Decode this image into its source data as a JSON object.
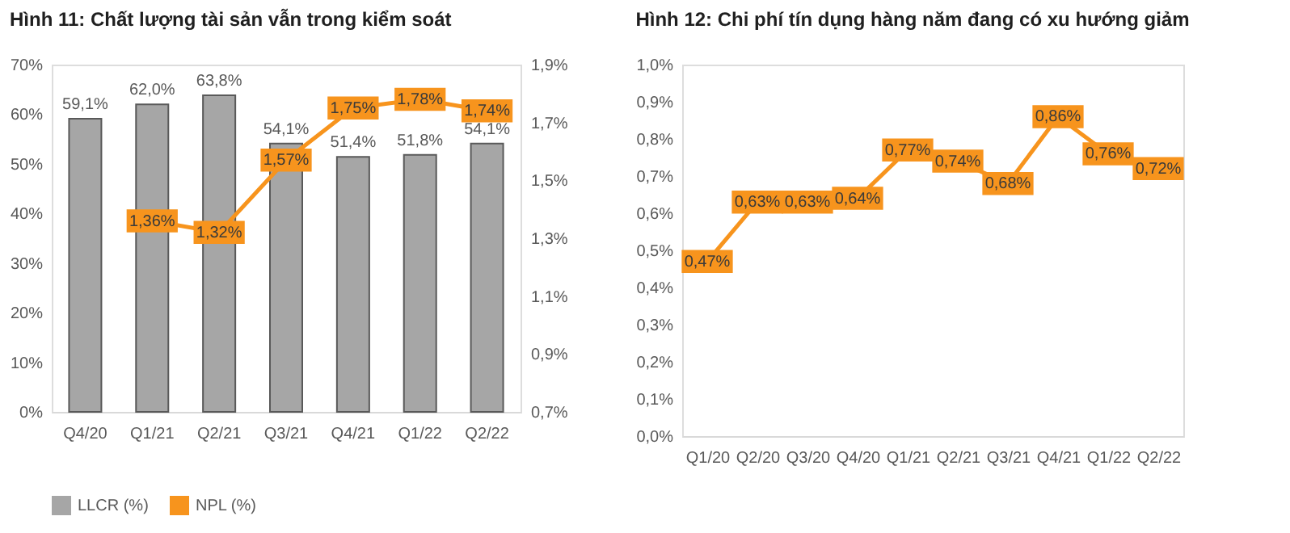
{
  "chart_data": [
    {
      "type": "bar",
      "title": "Hình 11: Chất lượng tài sản vẫn trong kiểm soát",
      "categories": [
        "Q4/20",
        "Q1/21",
        "Q2/21",
        "Q3/21",
        "Q4/21",
        "Q1/22",
        "Q2/22"
      ],
      "series": [
        {
          "name": "LLCR (%)",
          "type": "bar",
          "color": "#a6a6a6",
          "values": [
            59.1,
            62.0,
            63.8,
            54.1,
            51.4,
            51.8,
            54.1
          ],
          "value_labels": [
            "59,1%",
            "62,0%",
            "63,8%",
            "54,1%",
            "51,4%",
            "51,8%",
            "54,1%"
          ]
        },
        {
          "name": "NPL (%)",
          "type": "line",
          "axis": "y2",
          "marker": "square",
          "color": "#f7941d",
          "values": [
            null,
            1.36,
            1.32,
            1.57,
            1.75,
            1.78,
            1.74
          ],
          "value_labels": [
            null,
            "1,36%",
            "1,32%",
            "1,57%",
            "1,75%",
            "1,78%",
            "1,74%"
          ]
        }
      ],
      "ylim": [
        0,
        70
      ],
      "yticks": [
        {
          "value": 0,
          "label": "0%"
        },
        {
          "value": 10,
          "label": "10%"
        },
        {
          "value": 20,
          "label": "20%"
        },
        {
          "value": 30,
          "label": "30%"
        },
        {
          "value": 40,
          "label": "40%"
        },
        {
          "value": 50,
          "label": "50%"
        },
        {
          "value": 60,
          "label": "60%"
        },
        {
          "value": 70,
          "label": "70%"
        }
      ],
      "y2lim": [
        0.7,
        1.9
      ],
      "y2ticks": [
        {
          "value": 0.7,
          "label": "0,7%"
        },
        {
          "value": 0.9,
          "label": "0,9%"
        },
        {
          "value": 1.1,
          "label": "1,1%"
        },
        {
          "value": 1.3,
          "label": "1,3%"
        },
        {
          "value": 1.5,
          "label": "1,5%"
        },
        {
          "value": 1.7,
          "label": "1,7%"
        },
        {
          "value": 1.9,
          "label": "1,9%"
        }
      ],
      "legend": "bottom",
      "grid": false
    },
    {
      "type": "line",
      "title": "Hình 12: Chi phí tín dụng hàng năm đang có xu hướng giảm",
      "categories": [
        "Q1/20",
        "Q2/20",
        "Q3/20",
        "Q4/20",
        "Q1/21",
        "Q2/21",
        "Q3/21",
        "Q4/21",
        "Q1/22",
        "Q2/22"
      ],
      "series": [
        {
          "marker": "square",
          "color": "#f7941d",
          "values": [
            0.47,
            0.63,
            0.63,
            0.64,
            0.77,
            0.74,
            0.68,
            0.86,
            0.76,
            0.72
          ],
          "value_labels": [
            "0,47%",
            "0,63%",
            "0,63%",
            "0,64%",
            "0,77%",
            "0,74%",
            "0,68%",
            "0,86%",
            "0,76%",
            "0,72%"
          ]
        }
      ],
      "ylim": [
        0,
        1.0
      ],
      "yticks": [
        {
          "value": 0,
          "label": "0,0%"
        },
        {
          "value": 0.1,
          "label": "0,1%"
        },
        {
          "value": 0.2,
          "label": "0,2%"
        },
        {
          "value": 0.3,
          "label": "0,3%"
        },
        {
          "value": 0.4,
          "label": "0,4%"
        },
        {
          "value": 0.5,
          "label": "0,5%"
        },
        {
          "value": 0.6,
          "label": "0,6%"
        },
        {
          "value": 0.7,
          "label": "0,7%"
        },
        {
          "value": 0.8,
          "label": "0,8%"
        },
        {
          "value": 0.9,
          "label": "0,9%"
        },
        {
          "value": 1.0,
          "label": "1,0%"
        }
      ],
      "legend": false,
      "grid": false
    }
  ]
}
